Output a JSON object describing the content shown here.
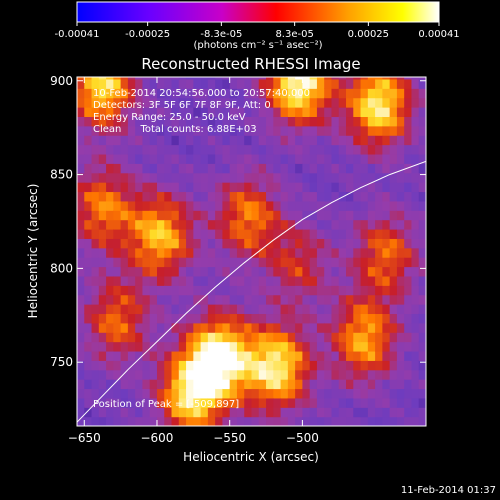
{
  "colorbar": {
    "ticks": [
      "-0.00041",
      "-0.00025",
      "-8.3e-05",
      "8.3e-05",
      "0.00025",
      "0.00041"
    ],
    "tick_values": [
      -0.00041,
      -0.00025,
      -8.3e-05,
      8.3e-05,
      0.00025,
      0.00041
    ],
    "range": [
      -0.00041,
      0.00041
    ],
    "unit_label": "(photons cm⁻² s⁻¹ asec⁻²)",
    "colors": [
      "#0000ff",
      "#6a00ff",
      "#c800c8",
      "#ff0000",
      "#ffa000",
      "#ffff00",
      "#ffffff"
    ]
  },
  "chart_data": {
    "type": "heatmap",
    "title": "Reconstructed RHESSI Image",
    "xlabel": "Heliocentric X (arcsec)",
    "ylabel": "Heliocentric Y (arcsec)",
    "xlim": [
      -655,
      -415
    ],
    "ylim": [
      716,
      902
    ],
    "xticks": [
      -650,
      -600,
      -550,
      -500
    ],
    "yticks": [
      750,
      800,
      850,
      900
    ],
    "limb_curve": {
      "x": [
        -655,
        -640,
        -620,
        -600,
        -580,
        -560,
        -540,
        -520,
        -500,
        -480,
        -460,
        -440,
        -415
      ],
      "y": [
        718,
        730,
        746,
        761,
        776,
        790,
        803,
        815,
        826,
        835,
        843,
        850,
        857
      ]
    },
    "sources": [
      {
        "x": -505,
        "y": 897,
        "amp": 1.0
      },
      {
        "x": -450,
        "y": 885,
        "amp": 0.9
      },
      {
        "x": -640,
        "y": 895,
        "amp": 0.85
      },
      {
        "x": -560,
        "y": 750,
        "amp": 1.0
      },
      {
        "x": -520,
        "y": 745,
        "amp": 0.9
      },
      {
        "x": -580,
        "y": 730,
        "amp": 0.8
      },
      {
        "x": -460,
        "y": 760,
        "amp": 0.7
      },
      {
        "x": -600,
        "y": 815,
        "amp": 0.75
      },
      {
        "x": -540,
        "y": 825,
        "amp": 0.6
      },
      {
        "x": -640,
        "y": 830,
        "amp": 0.6
      },
      {
        "x": -630,
        "y": 770,
        "amp": 0.55
      },
      {
        "x": -505,
        "y": 800,
        "amp": 0.4
      },
      {
        "x": -445,
        "y": 805,
        "amp": 0.55
      }
    ],
    "annotations": [
      "10-Feb-2014 20:54:56.000 to 20:57:40.000",
      "Detectors: 3F 5F 6F 7F 8F 9F, Att: 0",
      "Energy Range: 25.0 - 50.0 keV",
      "Clean      Total counts: 6.88E+03"
    ],
    "peak_label": "Position of Peak = [-509,897]"
  },
  "footer_date": "11-Feb-2014 01:37"
}
